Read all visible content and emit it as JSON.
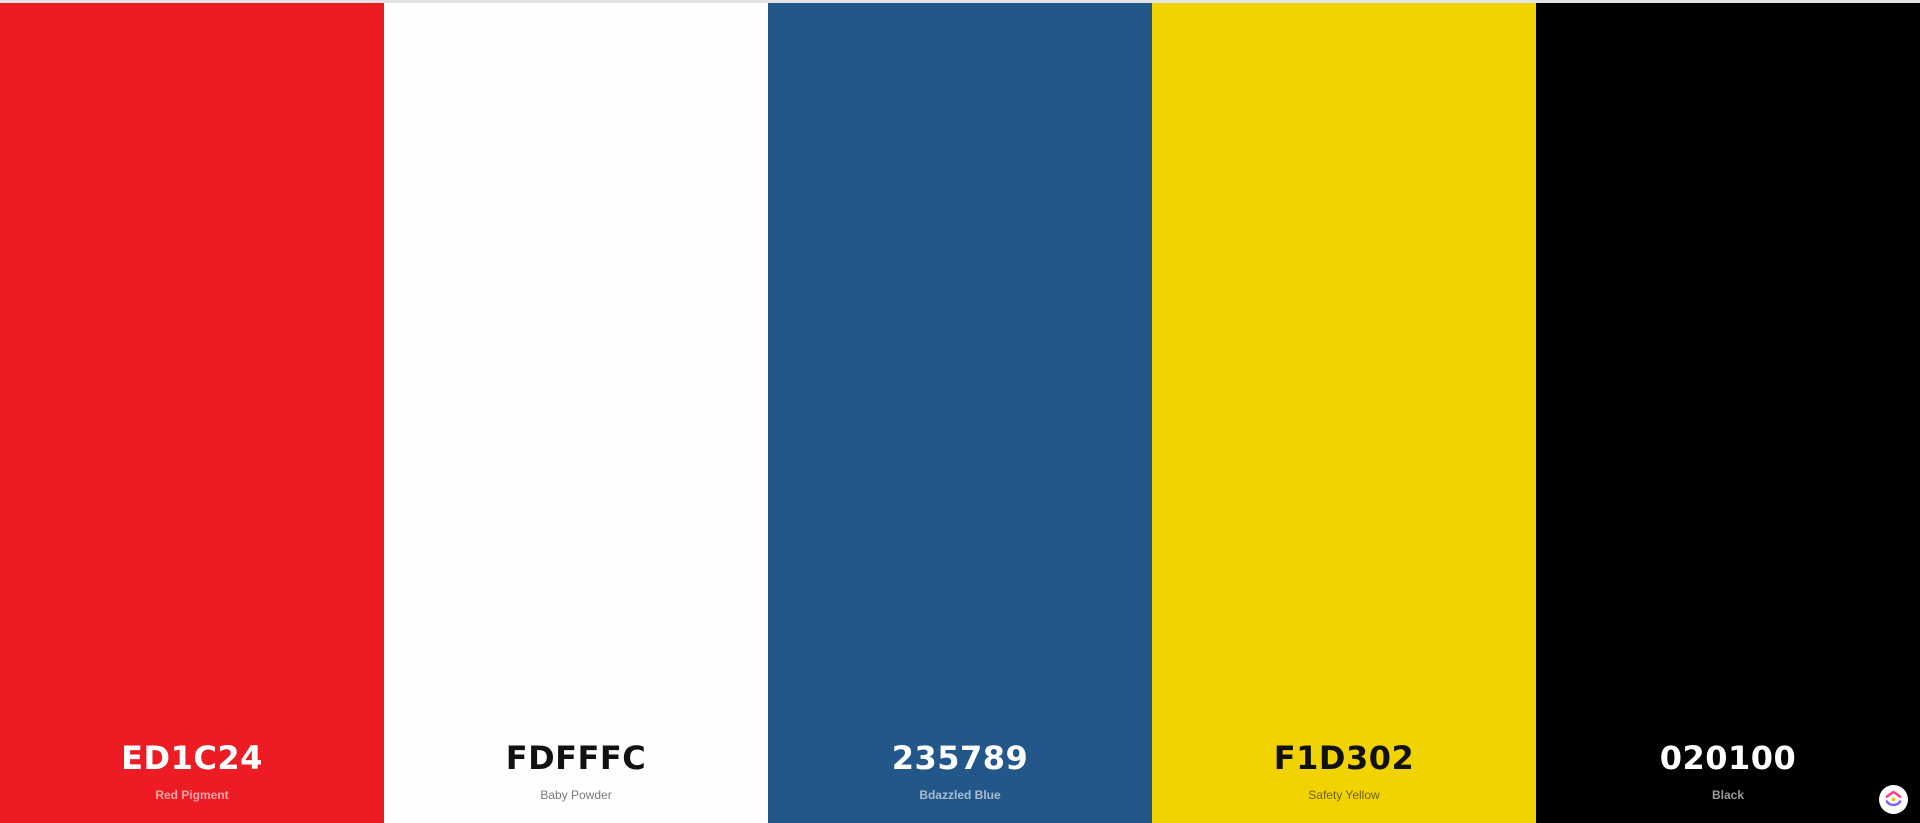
{
  "palette": {
    "swatches": [
      {
        "hex_label": "ED1C24",
        "name": "Red Pigment",
        "background": "#ED1C24",
        "hex_text_color": "#ffffff",
        "name_text_color": "#f6a5a8",
        "name_weight": "bold"
      },
      {
        "hex_label": "FDFFFC",
        "name": "Baby Powder",
        "background": "#FDFFFC",
        "hex_text_color": "#111111",
        "name_text_color": "#7a7a7a",
        "name_weight": "normal"
      },
      {
        "hex_label": "235789",
        "name": "Bdazzled Blue",
        "background": "#235789",
        "hex_text_color": "#ffffff",
        "name_text_color": "#a8bcd0",
        "name_weight": "bold"
      },
      {
        "hex_label": "F1D302",
        "name": "Safety Yellow",
        "background": "#F1D302",
        "hex_text_color": "#111111",
        "name_text_color": "#6e6108",
        "name_weight": "normal"
      },
      {
        "hex_label": "020100",
        "name": "Black",
        "background": "#020100",
        "hex_text_color": "#ffffff",
        "name_text_color": "#9a9a9a",
        "name_weight": "bold"
      }
    ]
  },
  "logo": {
    "icon": "app-logo-icon",
    "colors": [
      "#ff3d7f",
      "#7b61ff",
      "#ffb000",
      "#2ec4ff"
    ]
  }
}
